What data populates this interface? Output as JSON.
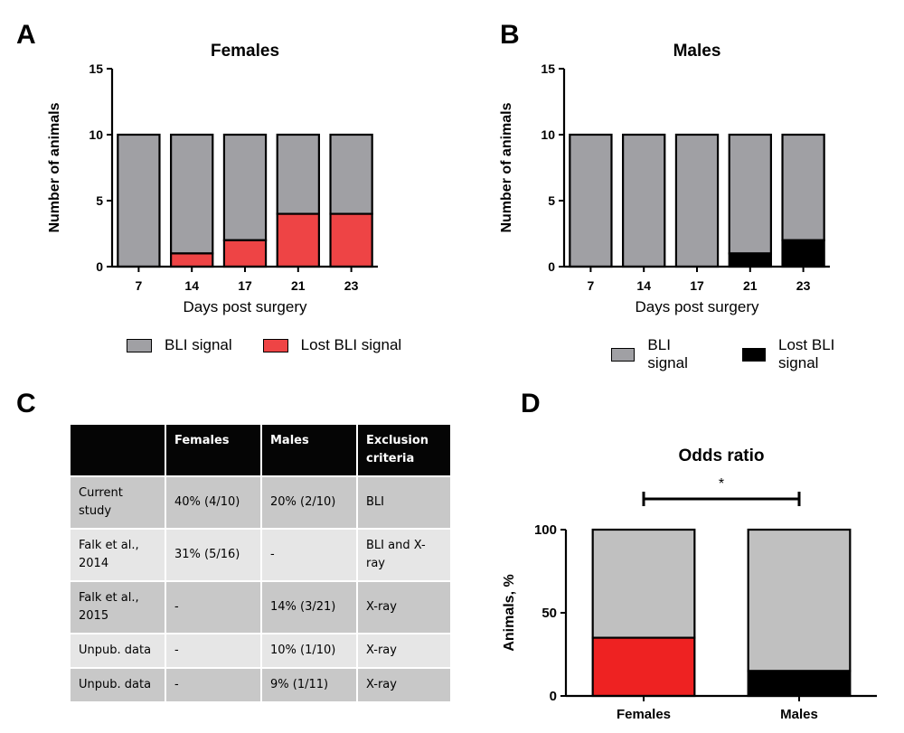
{
  "panels": {
    "a": "A",
    "b": "B",
    "c": "C",
    "d": "D"
  },
  "colors": {
    "bli": "#a0a0a4",
    "lost_female": "#ee4445",
    "lost_male": "#000000",
    "d_bg": "#c0c0c0",
    "d_female": "#ee2222",
    "d_male": "#000000"
  },
  "legend_a": {
    "bli": "BLI signal",
    "lost": "Lost BLI signal"
  },
  "legend_b": {
    "bli": "BLI signal",
    "lost": "Lost BLI signal"
  },
  "table": {
    "headers": [
      "",
      "Females",
      "Males",
      "Exclusion criteria"
    ],
    "rows": [
      [
        "Current study",
        "40% (4/10)",
        "20% (2/10)",
        "BLI"
      ],
      [
        "Falk et al., 2014",
        "31% (5/16)",
        "-",
        "BLI and X-ray"
      ],
      [
        "Falk et al., 2015",
        "-",
        "14% (3/21)",
        "X-ray"
      ],
      [
        "Unpub. data",
        "-",
        "10% (1/10)",
        "X-ray"
      ],
      [
        "Unpub. data",
        "-",
        "9% (1/11)",
        "X-ray"
      ]
    ]
  },
  "chart_data": [
    {
      "type": "bar",
      "stacked": true,
      "title": "Females",
      "xlabel": "Days post surgery",
      "ylabel": "Number of animals",
      "categories": [
        "7",
        "14",
        "17",
        "21",
        "23"
      ],
      "ylim": [
        0,
        15
      ],
      "yticks": [
        0,
        5,
        10,
        15
      ],
      "series": [
        {
          "name": "Lost BLI signal",
          "values": [
            0,
            1,
            2,
            4,
            4
          ]
        },
        {
          "name": "BLI signal",
          "values": [
            10,
            9,
            8,
            6,
            6
          ]
        }
      ]
    },
    {
      "type": "bar",
      "stacked": true,
      "title": "Males",
      "xlabel": "Days post surgery",
      "ylabel": "Number of animals",
      "categories": [
        "7",
        "14",
        "17",
        "21",
        "23"
      ],
      "ylim": [
        0,
        15
      ],
      "yticks": [
        0,
        5,
        10,
        15
      ],
      "series": [
        {
          "name": "Lost BLI signal",
          "values": [
            0,
            0,
            0,
            1,
            2
          ]
        },
        {
          "name": "BLI signal",
          "values": [
            10,
            10,
            10,
            9,
            8
          ]
        }
      ]
    },
    {
      "type": "bar",
      "stacked": true,
      "title": "Odds ratio",
      "xlabel": "",
      "ylabel": "Animals, %",
      "categories": [
        "Females",
        "Males"
      ],
      "ylim": [
        0,
        100
      ],
      "yticks": [
        0,
        50,
        100
      ],
      "series": [
        {
          "values": [
            35,
            15
          ]
        },
        {
          "values": [
            65,
            85
          ]
        }
      ],
      "annotations": [
        "*"
      ]
    }
  ]
}
